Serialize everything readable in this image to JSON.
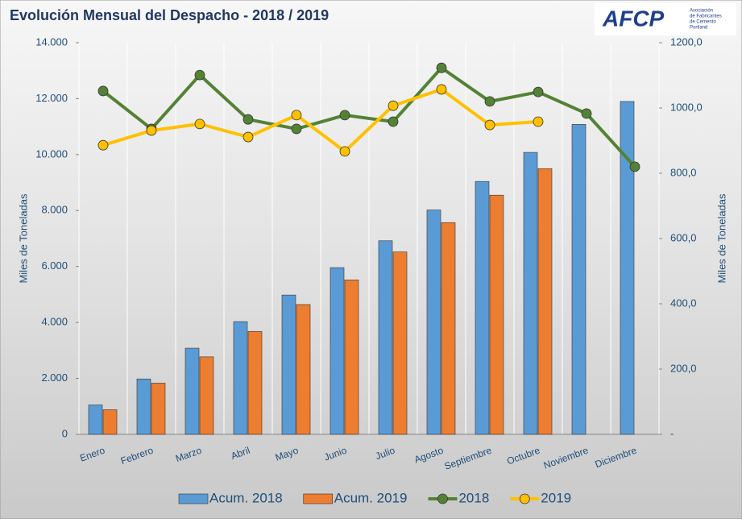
{
  "chart_data": {
    "type": "bar",
    "title": "Evolución Mensual del Despacho - 2018 / 2019",
    "y_label": "Miles de Toneladas",
    "y2_label": "Miles de Toneladas",
    "categories": [
      "Enero",
      "Febrero",
      "Marzo",
      "Abril",
      "Mayo",
      "Junio",
      "Julio",
      "Agosto",
      "Septiembre",
      "Octubre",
      "Noviembre",
      "Diciembre"
    ],
    "series": [
      {
        "name": "Acum. 2018",
        "type": "bar",
        "color": "#5b9bd5",
        "values": [
          1050,
          1980,
          3080,
          4030,
          4980,
          5960,
          6920,
          8020,
          9040,
          10080,
          11080,
          11900
        ]
      },
      {
        "name": "Acum. 2019",
        "type": "bar",
        "color": "#ed7d31",
        "values": [
          880,
          1830,
          2770,
          3680,
          4640,
          5520,
          6520,
          7570,
          8550,
          9500,
          null,
          null
        ]
      },
      {
        "name": "2018",
        "type": "line",
        "axis": "y2",
        "color": "#548235",
        "values": [
          1052,
          936,
          1101,
          965,
          936,
          978,
          958,
          1123,
          1020,
          1049,
          983,
          820
        ]
      },
      {
        "name": "2019",
        "type": "line",
        "axis": "y2",
        "color": "#ffc000",
        "values": [
          886,
          931,
          951,
          911,
          978,
          867,
          1007,
          1057,
          948,
          958,
          null,
          null
        ]
      }
    ],
    "ylim": [
      0,
      14000
    ],
    "yticks": [
      0,
      {
        "value": 2000,
        "label": "2.000"
      },
      {
        "value": 4000,
        "label": "4.000"
      },
      {
        "value": 6000,
        "label": "6.000"
      },
      {
        "value": 8000,
        "label": "8.000"
      },
      {
        "value": 10000,
        "label": "10.000"
      },
      {
        "value": 12000,
        "label": "12.000"
      },
      {
        "value": 14000,
        "label": "14.000"
      }
    ],
    "y2lim": [
      0,
      1200
    ],
    "y2ticks": [
      {
        "value": 0,
        "label": "-"
      },
      {
        "value": 200,
        "label": "200,0"
      },
      {
        "value": 400,
        "label": "400,0"
      },
      {
        "value": 600,
        "label": "600,0"
      },
      {
        "value": 800,
        "label": "800,0"
      },
      {
        "value": 1000,
        "label": "1000,0"
      },
      {
        "value": 1200,
        "label": "1200,0"
      }
    ],
    "grid": "vertical"
  },
  "logo": {
    "text": "AFCP",
    "subtitle": [
      "Asociación",
      "de Fabricantes",
      "de Cemento",
      "Portland"
    ]
  }
}
